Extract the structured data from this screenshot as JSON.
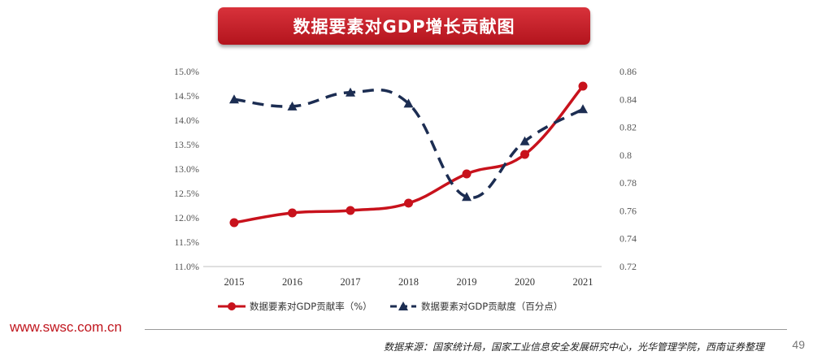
{
  "title": "数据要素对GDP增长贡献图",
  "footer": {
    "url": "www.swsc.com.cn",
    "source": "数据来源：国家统计局，国家工业信息安全发展研究中心，光华管理学院，西南证券整理",
    "page_number": "49"
  },
  "colors": {
    "title_bg": "#c41e26",
    "series_rate": "#c8121c",
    "series_degree": "#1c2d52"
  },
  "chart_data": {
    "type": "line",
    "x": [
      "2015",
      "2016",
      "2017",
      "2018",
      "2019",
      "2020",
      "2021"
    ],
    "left_axis": {
      "ylim": [
        11.0,
        15.0
      ],
      "ticks": [
        "11.0%",
        "11.5%",
        "12.0%",
        "12.5%",
        "13.0%",
        "13.5%",
        "14.0%",
        "14.5%",
        "15.0%"
      ]
    },
    "right_axis": {
      "ylim": [
        0.72,
        0.86
      ],
      "ticks": [
        "0.72",
        "0.74",
        "0.76",
        "0.78",
        "0.8",
        "0.82",
        "0.84",
        "0.86"
      ]
    },
    "series": [
      {
        "name": "数据要素对GDP贡献率（%）",
        "axis": "left",
        "style": "solid-circle",
        "values": [
          11.9,
          12.1,
          12.15,
          12.3,
          12.9,
          13.3,
          14.7
        ]
      },
      {
        "name": "数据要素对GDP贡献度（百分点）",
        "axis": "right",
        "style": "dashed-triangle",
        "values": [
          0.84,
          0.835,
          0.845,
          0.837,
          0.77,
          0.81,
          0.833
        ]
      }
    ],
    "legend_position": "bottom",
    "grid": false
  }
}
